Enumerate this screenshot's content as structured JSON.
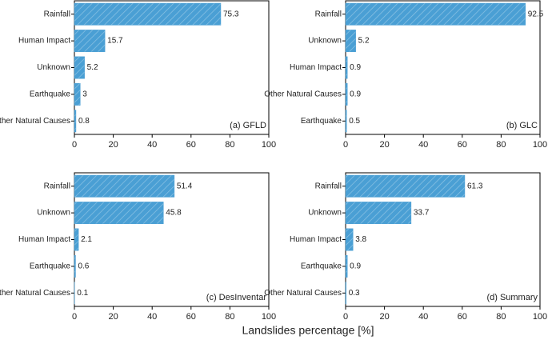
{
  "xlabel": "Landslides percentage [%]",
  "chart_data": [
    {
      "type": "bar",
      "orientation": "horizontal",
      "annotation": "(a) GFLD",
      "categories": [
        "Rainfall",
        "Human Impact",
        "Unknown",
        "Earthquake",
        "Other Natural Causes"
      ],
      "values": [
        75.3,
        15.7,
        5.2,
        3,
        0.8
      ],
      "color": "#4a9fd4",
      "xlim": [
        0,
        100
      ],
      "xticks": [
        0,
        20,
        40,
        60,
        80,
        100
      ]
    },
    {
      "type": "bar",
      "orientation": "horizontal",
      "annotation": "(b) GLC",
      "categories": [
        "Rainfall",
        "Unknown",
        "Human Impact",
        "Other Natural Causes",
        "Earthquake"
      ],
      "values": [
        92.5,
        5.2,
        0.9,
        0.9,
        0.5
      ],
      "color": "#4a9fd4",
      "xlim": [
        0,
        100
      ],
      "xticks": [
        0,
        20,
        40,
        60,
        80,
        100
      ]
    },
    {
      "type": "bar",
      "orientation": "horizontal",
      "annotation": "(c) DesInventar",
      "categories": [
        "Rainfall",
        "Unknown",
        "Human Impact",
        "Earthquake",
        "Other Natural Causes"
      ],
      "values": [
        51.4,
        45.8,
        2.1,
        0.6,
        0.1
      ],
      "color": "#4a9fd4",
      "xlim": [
        0,
        100
      ],
      "xticks": [
        0,
        20,
        40,
        60,
        80,
        100
      ]
    },
    {
      "type": "bar",
      "orientation": "horizontal",
      "annotation": "(d) Summary",
      "categories": [
        "Rainfall",
        "Unknown",
        "Human Impact",
        "Earthquake",
        "Other Natural Causes"
      ],
      "values": [
        61.3,
        33.7,
        3.8,
        0.9,
        0.3
      ],
      "color": "#4a9fd4",
      "xlim": [
        0,
        100
      ],
      "xticks": [
        0,
        20,
        40,
        60,
        80,
        100
      ]
    }
  ]
}
